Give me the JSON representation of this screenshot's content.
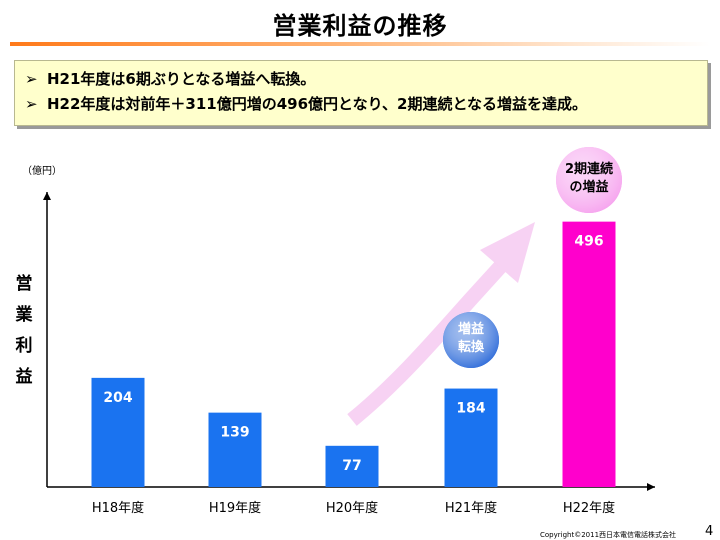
{
  "title": "営業利益の推移",
  "bullets": [
    "H21年度は6期ぶりとなる増益へ転換。",
    "H22年度は対前年＋311億円増の496億円となり、2期連続となる増益を達成。"
  ],
  "chart_data": {
    "type": "bar",
    "categories": [
      "H18年度",
      "H19年度",
      "H20年度",
      "H21年度",
      "H22年度"
    ],
    "values": [
      204,
      139,
      77,
      184,
      496
    ],
    "unit_label": "（億円）",
    "ylabel": "営業利益",
    "bar_colors": [
      "#1a73f0",
      "#1a73f0",
      "#1a73f0",
      "#1a73f0",
      "#ff00cc"
    ],
    "callouts": [
      {
        "text": "増益\n転換",
        "category": "H21年度",
        "color": "#2f6cd9"
      },
      {
        "text": "2期連続\nの増益",
        "category": "H22年度",
        "color": "#f6a3ee"
      }
    ],
    "arrow_color": "#f6cdf2",
    "grid": false,
    "legend": "none"
  },
  "footer": {
    "copyright": "Copyright©2011西日本電信電話株式会社",
    "page": "4"
  }
}
